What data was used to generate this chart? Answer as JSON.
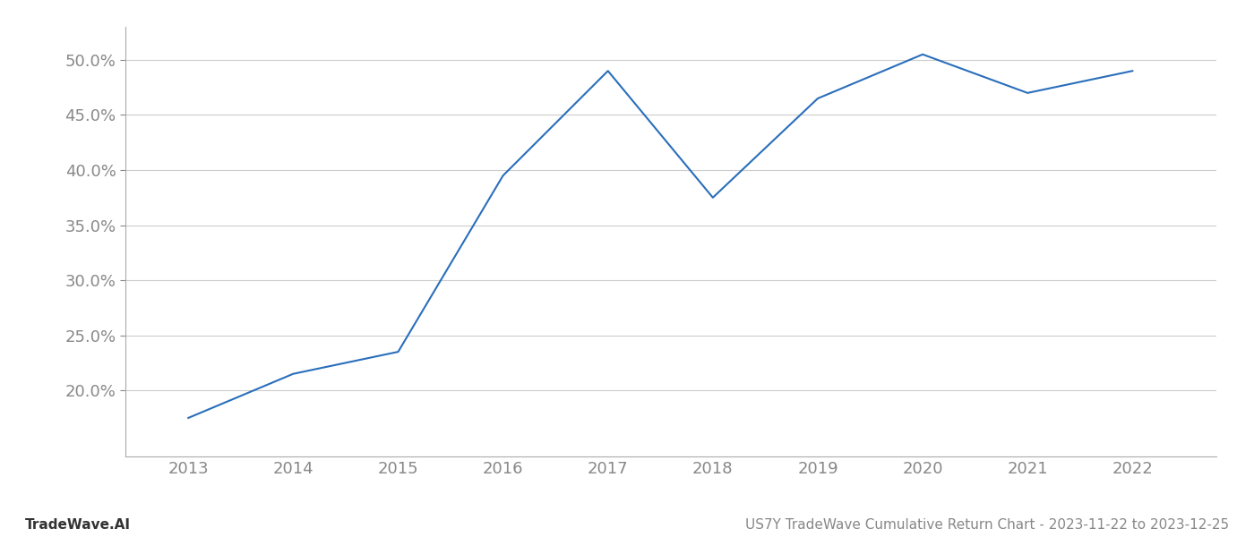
{
  "x_years": [
    2013,
    2014,
    2015,
    2016,
    2017,
    2018,
    2019,
    2020,
    2021,
    2022
  ],
  "y_values": [
    17.5,
    21.5,
    23.5,
    39.5,
    49.0,
    37.5,
    46.5,
    50.5,
    47.0,
    49.0
  ],
  "line_color": "#2a6ebb",
  "line_width": 1.5,
  "grid_color": "#cccccc",
  "background_color": "#ffffff",
  "tick_color": "#888888",
  "ylabel_values": [
    20.0,
    25.0,
    30.0,
    35.0,
    40.0,
    45.0,
    50.0
  ],
  "ylim": [
    14.0,
    53.0
  ],
  "xlim": [
    2012.4,
    2022.8
  ],
  "footer_left": "TradeWave.AI",
  "footer_right": "US7Y TradeWave Cumulative Return Chart - 2023-11-22 to 2023-12-25",
  "footer_color": "#888888",
  "footer_fontsize": 11,
  "tick_fontsize": 13,
  "footer_left_color": "#333333"
}
